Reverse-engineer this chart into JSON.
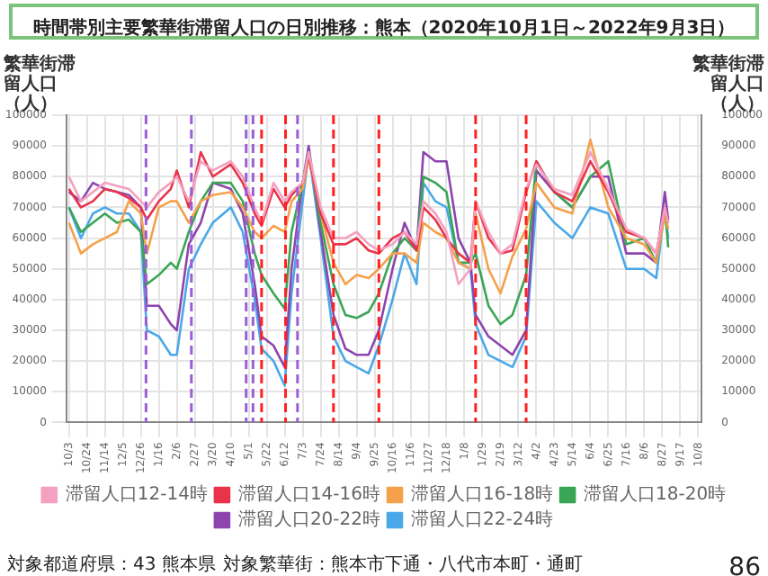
{
  "chart_data": {
    "type": "line",
    "title": "時間帯別主要繁華街滞留人口の日別推移：熊本（2020年10月1日～2022年9月3日）",
    "ylabel": "繁華街滞留人口（人）",
    "y2label": "繁華街滞留人口（人）",
    "x": [
      "2020-10-03",
      "2020-10-17",
      "2020-10-31",
      "2020-11-14",
      "2020-11-28",
      "2020-12-12",
      "2020-12-26",
      "2021-01-02",
      "2021-01-16",
      "2021-01-30",
      "2021-02-06",
      "2021-02-20",
      "2021-03-06",
      "2021-03-20",
      "2021-04-10",
      "2021-04-24",
      "2021-05-08",
      "2021-05-16",
      "2021-05-30",
      "2021-06-12",
      "2021-06-20",
      "2021-07-03",
      "2021-07-10",
      "2021-07-24",
      "2021-08-08",
      "2021-08-22",
      "2021-09-04",
      "2021-09-18",
      "2021-09-30",
      "2021-10-16",
      "2021-10-30",
      "2021-11-13",
      "2021-11-21",
      "2021-12-05",
      "2021-12-18",
      "2022-01-01",
      "2022-01-15",
      "2022-01-21",
      "2022-02-05",
      "2022-02-19",
      "2022-03-05",
      "2022-03-21",
      "2022-04-02",
      "2022-04-23",
      "2022-05-14",
      "2022-06-04",
      "2022-06-25",
      "2022-07-16",
      "2022-08-06",
      "2022-08-20",
      "2022-08-30",
      "2022-09-03"
    ],
    "series": [
      {
        "name": "滞留人口12-14時",
        "color": "#f4a0c0",
        "values": [
          80000,
          72000,
          75000,
          78000,
          77000,
          76000,
          72000,
          70000,
          75000,
          78000,
          80000,
          72000,
          85000,
          82000,
          85000,
          80000,
          70000,
          65000,
          78000,
          72000,
          75000,
          78000,
          88000,
          70000,
          60000,
          60000,
          62000,
          58000,
          56000,
          58000,
          62000,
          58000,
          72000,
          68000,
          62000,
          45000,
          50000,
          72000,
          62000,
          55000,
          58000,
          76000,
          84000,
          76000,
          74000,
          88000,
          76000,
          63000,
          60000,
          55000,
          70000,
          65000
        ]
      },
      {
        "name": "滞留人口14-16時",
        "color": "#e8334a",
        "values": [
          76000,
          70000,
          72000,
          76000,
          75000,
          73000,
          70000,
          66000,
          72000,
          76000,
          82000,
          70000,
          88000,
          80000,
          84000,
          78000,
          68000,
          64000,
          76000,
          70000,
          74000,
          78000,
          87000,
          68000,
          58000,
          58000,
          60000,
          56000,
          55000,
          60000,
          62000,
          56000,
          70000,
          66000,
          60000,
          55000,
          52000,
          72000,
          60000,
          55000,
          56000,
          75000,
          85000,
          75000,
          72000,
          85000,
          75000,
          62000,
          60000,
          55000,
          70000,
          65000
        ]
      },
      {
        "name": "滞留人口16-18時",
        "color": "#f5a04a",
        "values": [
          65000,
          55000,
          58000,
          60000,
          62000,
          72000,
          68000,
          55000,
          70000,
          72000,
          72000,
          65000,
          72000,
          74000,
          75000,
          70000,
          62000,
          60000,
          64000,
          62000,
          72000,
          76000,
          86000,
          68000,
          52000,
          45000,
          48000,
          47000,
          50000,
          55000,
          55000,
          52000,
          65000,
          62000,
          60000,
          52000,
          50000,
          68000,
          50000,
          42000,
          54000,
          63000,
          78000,
          70000,
          68000,
          92000,
          70000,
          60000,
          58000,
          52000,
          68000,
          63000
        ]
      },
      {
        "name": "滞留人口18-20時",
        "color": "#3aa655",
        "values": [
          70000,
          62000,
          65000,
          68000,
          65000,
          66000,
          62000,
          45000,
          48000,
          52000,
          50000,
          62000,
          72000,
          78000,
          78000,
          72000,
          55000,
          48000,
          42000,
          37000,
          62000,
          78000,
          88000,
          65000,
          45000,
          35000,
          34000,
          36000,
          42000,
          55000,
          60000,
          56000,
          80000,
          78000,
          75000,
          52000,
          52000,
          55000,
          38000,
          32000,
          35000,
          48000,
          85000,
          75000,
          70000,
          80000,
          85000,
          58000,
          60000,
          52000,
          70000,
          57000
        ]
      },
      {
        "name": "滞留人口20-22時",
        "color": "#8e44ad",
        "values": [
          75000,
          72000,
          78000,
          76000,
          75000,
          74000,
          70000,
          38000,
          38000,
          32000,
          30000,
          58000,
          65000,
          78000,
          76000,
          68000,
          45000,
          28000,
          25000,
          18000,
          50000,
          78000,
          90000,
          62000,
          35000,
          24000,
          22000,
          22000,
          30000,
          50000,
          65000,
          56000,
          88000,
          85000,
          85000,
          60000,
          52000,
          35000,
          28000,
          25000,
          22000,
          30000,
          82000,
          75000,
          70000,
          80000,
          80000,
          55000,
          55000,
          52000,
          75000,
          66000
        ]
      },
      {
        "name": "滞留人口22-24時",
        "color": "#4aa8e8",
        "values": [
          70000,
          60000,
          68000,
          70000,
          68000,
          68000,
          62000,
          30000,
          28000,
          22000,
          22000,
          50000,
          58000,
          65000,
          70000,
          62000,
          40000,
          24000,
          20000,
          12000,
          42000,
          72000,
          88000,
          60000,
          28000,
          20000,
          18000,
          16000,
          25000,
          40000,
          55000,
          45000,
          78000,
          72000,
          70000,
          52000,
          50000,
          32000,
          22000,
          20000,
          18000,
          28000,
          72000,
          65000,
          60000,
          70000,
          68000,
          50000,
          50000,
          47000,
          70000,
          60000
        ]
      }
    ],
    "xlim": [
      "2020-09-30",
      "2022-10-12"
    ],
    "xticks": [
      {
        "value": "2020-10-03",
        "label": "10/3"
      },
      {
        "value": "2020-10-24",
        "label": "10/24"
      },
      {
        "value": "2020-11-14",
        "label": "11/14"
      },
      {
        "value": "2020-12-05",
        "label": "12/5"
      },
      {
        "value": "2020-12-26",
        "label": "12/26"
      },
      {
        "value": "2021-01-16",
        "label": "1/16"
      },
      {
        "value": "2021-02-06",
        "label": "2/6"
      },
      {
        "value": "2021-02-27",
        "label": "2/27"
      },
      {
        "value": "2021-03-20",
        "label": "3/20"
      },
      {
        "value": "2021-04-10",
        "label": "4/10"
      },
      {
        "value": "2021-05-01",
        "label": "5/1"
      },
      {
        "value": "2021-05-22",
        "label": "5/22"
      },
      {
        "value": "2021-06-12",
        "label": "6/12"
      },
      {
        "value": "2021-07-03",
        "label": "7/3"
      },
      {
        "value": "2021-07-24",
        "label": "7/24"
      },
      {
        "value": "2021-08-14",
        "label": "8/14"
      },
      {
        "value": "2021-09-04",
        "label": "9/4"
      },
      {
        "value": "2021-09-25",
        "label": "9/25"
      },
      {
        "value": "2021-10-16",
        "label": "10/16"
      },
      {
        "value": "2021-11-06",
        "label": "11/6"
      },
      {
        "value": "2021-11-27",
        "label": "11/27"
      },
      {
        "value": "2021-12-18",
        "label": "12/18"
      },
      {
        "value": "2022-01-08",
        "label": "1/8"
      },
      {
        "value": "2022-01-29",
        "label": "1/29"
      },
      {
        "value": "2022-02-19",
        "label": "2/19"
      },
      {
        "value": "2022-03-12",
        "label": "3/12"
      },
      {
        "value": "2022-04-02",
        "label": "4/2"
      },
      {
        "value": "2022-04-23",
        "label": "4/23"
      },
      {
        "value": "2022-05-14",
        "label": "5/14"
      },
      {
        "value": "2022-06-04",
        "label": "6/4"
      },
      {
        "value": "2022-06-25",
        "label": "6/25"
      },
      {
        "value": "2022-07-16",
        "label": "7/16"
      },
      {
        "value": "2022-08-06",
        "label": "8/6"
      },
      {
        "value": "2022-08-27",
        "label": "8/27"
      },
      {
        "value": "2022-09-17",
        "label": "9/17"
      },
      {
        "value": "2022-10-08",
        "label": "10/8"
      }
    ],
    "ylim": [
      0,
      100000
    ],
    "yticks": [
      0,
      10000,
      20000,
      30000,
      40000,
      50000,
      60000,
      70000,
      80000,
      90000,
      100000
    ],
    "y2lim": [
      0,
      100000
    ],
    "y2ticks": [
      0,
      10000,
      20000,
      30000,
      40000,
      50000,
      60000,
      70000,
      80000,
      90000,
      100000
    ],
    "ref_lines": [
      {
        "axis": "x",
        "value": "2021-01-01",
        "color": "#9a5fd6",
        "line_style": "dashed"
      },
      {
        "axis": "x",
        "value": "2021-02-23",
        "color": "#9a5fd6",
        "line_style": "dashed"
      },
      {
        "axis": "x",
        "value": "2021-04-28",
        "color": "#9a5fd6",
        "line_style": "dashed"
      },
      {
        "axis": "x",
        "value": "2021-05-06",
        "color": "#9a5fd6",
        "line_style": "dashed"
      },
      {
        "axis": "x",
        "value": "2021-05-16",
        "color": "#ff2020",
        "line_style": "dashed"
      },
      {
        "axis": "x",
        "value": "2021-06-13",
        "color": "#ff2020",
        "line_style": "dashed"
      },
      {
        "axis": "x",
        "value": "2021-06-27",
        "color": "#9a5fd6",
        "line_style": "dashed"
      },
      {
        "axis": "x",
        "value": "2021-08-08",
        "color": "#ff2020",
        "line_style": "dashed"
      },
      {
        "axis": "x",
        "value": "2021-09-30",
        "color": "#ff2020",
        "line_style": "dashed"
      },
      {
        "axis": "x",
        "value": "2022-01-21",
        "color": "#ff2020",
        "line_style": "dashed"
      },
      {
        "axis": "x",
        "value": "2022-03-21",
        "color": "#ff2020",
        "line_style": "dashed"
      }
    ],
    "annotations": [
      "対象都道府県：43 熊本県",
      "対象繁華街：熊本市下通・八代市本町・通町",
      "86"
    ],
    "grid": true,
    "legend": "bottom",
    "marker": "none",
    "line_style": "solid"
  }
}
